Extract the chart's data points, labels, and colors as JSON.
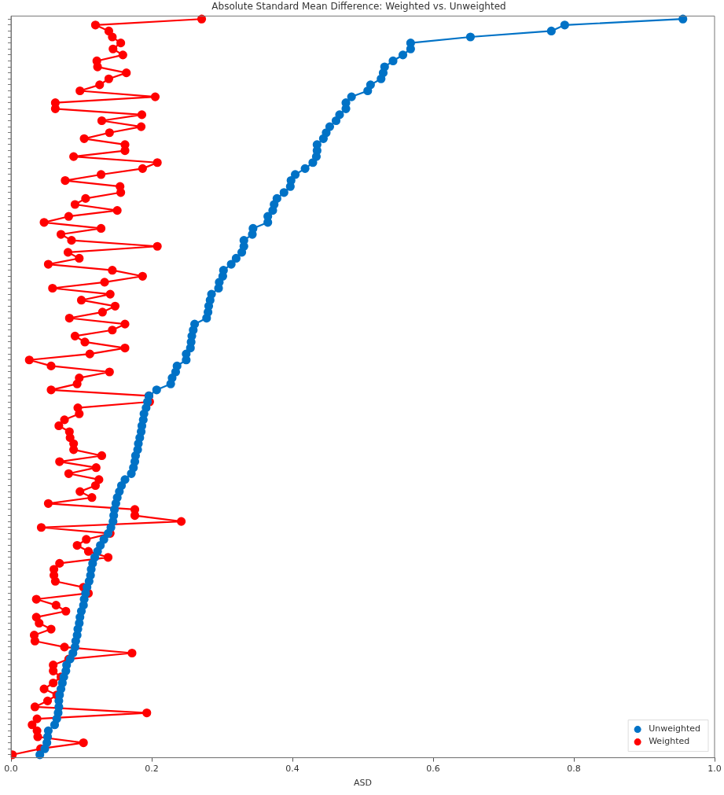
{
  "chart_data": {
    "type": "line",
    "title": "Absolute Standard Mean Difference: Weighted vs. Unweighted",
    "xlabel": "ASD",
    "orientation": "horizontal",
    "categories": [
      null,
      null,
      null,
      null,
      null,
      null,
      null,
      null,
      null,
      null,
      null,
      null,
      null,
      null,
      null,
      null,
      null,
      null,
      null,
      null,
      null,
      null,
      null,
      null,
      null,
      null,
      null,
      null,
      null,
      null,
      null,
      null,
      null,
      null,
      null,
      null,
      null,
      null,
      null,
      null,
      null,
      null,
      null,
      null,
      null,
      null,
      null,
      null,
      null,
      null,
      null,
      null,
      null,
      null,
      null,
      null,
      null,
      null,
      null,
      null,
      null,
      null,
      null,
      null,
      null,
      null,
      null,
      null,
      null,
      null,
      null,
      null,
      null,
      null,
      null,
      null,
      null,
      null,
      null,
      null,
      null,
      null,
      null,
      null,
      null,
      null,
      null,
      null,
      null,
      null,
      null,
      null,
      null,
      null,
      null,
      null,
      null,
      null,
      null,
      null,
      null,
      null,
      null,
      null,
      null,
      null,
      null,
      null,
      null,
      null,
      null,
      null,
      null,
      null,
      null,
      null,
      null,
      null,
      null,
      null,
      null,
      null,
      null,
      null
    ],
    "series": [
      {
        "name": "Unweighted",
        "color": "#0072c6",
        "values": [
          0.955,
          0.787,
          0.768,
          0.653,
          0.568,
          0.568,
          0.557,
          0.543,
          0.531,
          0.529,
          0.526,
          0.511,
          0.507,
          0.484,
          0.476,
          0.476,
          0.467,
          0.462,
          0.453,
          0.448,
          0.444,
          0.435,
          0.435,
          0.434,
          0.429,
          0.418,
          0.404,
          0.398,
          0.397,
          0.388,
          0.378,
          0.374,
          0.372,
          0.365,
          0.365,
          0.344,
          0.343,
          0.331,
          0.331,
          0.328,
          0.32,
          0.313,
          0.302,
          0.301,
          0.296,
          0.295,
          0.285,
          0.283,
          0.281,
          0.28,
          0.278,
          0.261,
          0.259,
          0.257,
          0.256,
          0.255,
          0.249,
          0.249,
          0.236,
          0.234,
          0.229,
          0.227,
          0.207,
          0.196,
          0.194,
          0.192,
          0.189,
          0.188,
          0.186,
          0.185,
          0.183,
          0.181,
          0.18,
          0.177,
          0.176,
          0.174,
          0.171,
          0.162,
          0.157,
          0.154,
          0.151,
          0.149,
          0.147,
          0.146,
          0.145,
          0.142,
          0.138,
          0.132,
          0.127,
          0.123,
          0.119,
          0.116,
          0.114,
          0.113,
          0.111,
          0.108,
          0.106,
          0.104,
          0.103,
          0.1,
          0.098,
          0.097,
          0.095,
          0.094,
          0.092,
          0.091,
          0.088,
          0.084,
          0.079,
          0.078,
          0.075,
          0.073,
          0.071,
          0.069,
          0.068,
          0.068,
          0.067,
          0.065,
          0.062,
          0.053,
          0.052,
          0.051,
          0.048,
          0.041
        ]
      },
      {
        "name": "Weighted",
        "color": "#ff0000",
        "values": [
          0.271,
          0.12,
          0.139,
          0.144,
          0.156,
          0.145,
          0.159,
          0.122,
          0.123,
          0.164,
          0.139,
          0.126,
          0.098,
          0.205,
          0.063,
          0.063,
          0.186,
          0.129,
          0.185,
          0.14,
          0.104,
          0.162,
          0.162,
          0.089,
          0.208,
          0.187,
          0.128,
          0.077,
          0.155,
          0.156,
          0.106,
          0.091,
          0.151,
          0.082,
          0.047,
          0.128,
          0.071,
          0.086,
          0.208,
          0.081,
          0.097,
          0.053,
          0.144,
          0.187,
          0.133,
          0.059,
          0.141,
          0.1,
          0.148,
          0.13,
          0.083,
          0.162,
          0.144,
          0.091,
          0.105,
          0.162,
          0.112,
          0.026,
          0.057,
          0.14,
          0.097,
          0.094,
          0.057,
          0.196,
          0.197,
          0.095,
          0.097,
          0.076,
          0.068,
          0.083,
          0.084,
          0.089,
          0.089,
          0.129,
          0.069,
          0.121,
          0.082,
          0.125,
          0.12,
          0.098,
          0.115,
          0.053,
          0.176,
          0.176,
          0.242,
          0.043,
          0.141,
          0.107,
          0.094,
          0.11,
          0.138,
          0.069,
          0.061,
          0.061,
          0.063,
          0.103,
          0.11,
          0.036,
          0.064,
          0.078,
          0.036,
          0.04,
          0.057,
          0.033,
          0.034,
          0.076,
          0.172,
          0.082,
          0.06,
          0.06,
          0.071,
          0.06,
          0.047,
          0.065,
          0.052,
          0.034,
          0.193,
          0.037,
          0.03,
          0.037,
          0.038,
          0.103,
          0.042,
          0.002
        ]
      }
    ],
    "xlim": [
      0,
      1
    ],
    "xticks": [
      {
        "value": 0,
        "label": "0.0"
      },
      {
        "value": 0.2,
        "label": "0.2"
      },
      {
        "value": 0.4,
        "label": "0.4"
      },
      {
        "value": 0.6,
        "label": "0.6"
      },
      {
        "value": 0.8,
        "label": "0.8"
      },
      {
        "value": 1,
        "label": "1.0"
      }
    ],
    "tick_labels": "x",
    "grid": false,
    "legend": "bottom right",
    "marker": "circle",
    "line_style": "solid"
  }
}
